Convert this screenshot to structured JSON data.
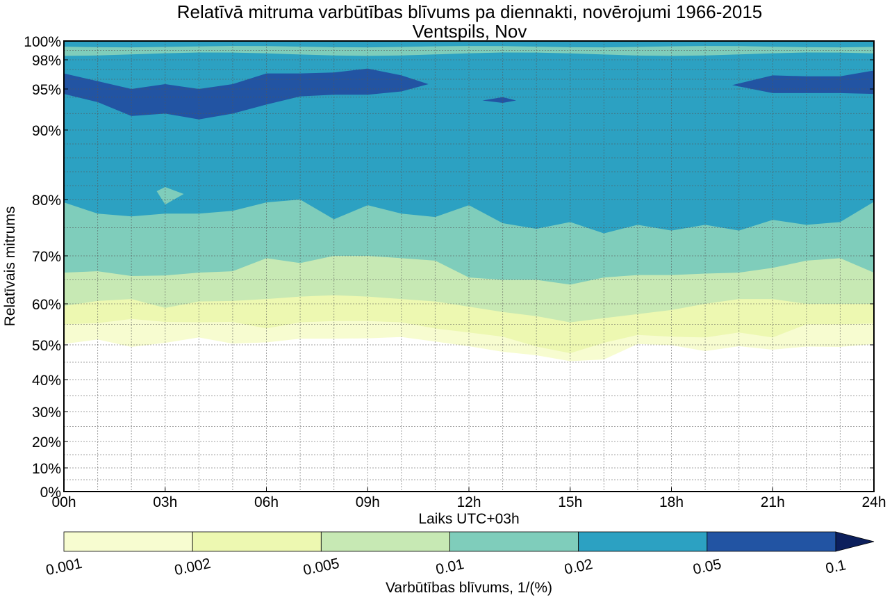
{
  "chart_data": {
    "type": "contourf",
    "title": "Relatīvā mitruma varbūtības blīvums pa diennakti, novērojumi 1966-2015",
    "subtitle": "Ventspils, Nov",
    "xlabel": "Laiks UTC+03h",
    "ylabel": "Relatīvais mitrums",
    "xlim": [
      0,
      24
    ],
    "x_ticks": [
      0,
      3,
      6,
      9,
      12,
      15,
      18,
      21,
      24
    ],
    "x_tick_labels": [
      "00h",
      "03h",
      "06h",
      "09h",
      "12h",
      "15h",
      "18h",
      "21h",
      "24h"
    ],
    "y_ticks": [
      0,
      10,
      20,
      30,
      40,
      50,
      60,
      70,
      80,
      90,
      95,
      98,
      100
    ],
    "y_tick_labels": [
      "0%",
      "10%",
      "20%",
      "30%",
      "40%",
      "50%",
      "60%",
      "70%",
      "80%",
      "90%",
      "95%",
      "98%",
      "100%"
    ],
    "y_minor_grid": [
      5,
      15,
      25,
      35,
      45,
      55,
      65,
      75,
      82,
      84,
      86,
      88,
      92,
      94,
      96,
      97,
      99
    ],
    "grid": true,
    "colorbar": {
      "label": "Varbūtības blīvums, 1/(%)",
      "levels": [
        0.001,
        0.002,
        0.005,
        0.01,
        0.02,
        0.05,
        0.1
      ],
      "level_labels": [
        "0.001",
        "0.002",
        "0.005",
        "0.01",
        "0.02",
        "0.05",
        "0.1"
      ],
      "colors": [
        "#f7fcd0",
        "#edf8b1",
        "#c7e9b4",
        "#7fcdbb",
        "#2ca1c2",
        "#2254a3",
        "#0c1f5c"
      ],
      "extend": "max",
      "placement": "bottom"
    },
    "hours": [
      0,
      1,
      2,
      3,
      4,
      5,
      6,
      7,
      8,
      9,
      10,
      11,
      12,
      13,
      14,
      15,
      16,
      17,
      18,
      19,
      20,
      21,
      22,
      23,
      24
    ],
    "bands": [
      {
        "level": 0.001,
        "color": "#f7fcd0",
        "lower_rh": [
          50.2,
          51.3,
          49.4,
          50.5,
          51.8,
          50.3,
          50.6,
          51.5,
          51.5,
          51.6,
          51.9,
          50.8,
          49.6,
          48.0,
          47.0,
          45.3,
          45.8,
          50.2,
          49.9,
          48.2,
          49.6,
          48.6,
          49.5,
          49.4,
          50.2
        ]
      },
      {
        "level": 0.002,
        "color": "#edf8b1",
        "lower_rh": [
          55.0,
          55.3,
          56.3,
          55.6,
          55.5,
          55.6,
          54.0,
          55.5,
          55.8,
          55.8,
          55.5,
          54.0,
          53.0,
          52.0,
          49.5,
          47.6,
          50.5,
          52.4,
          52.0,
          51.8,
          53.0,
          51.8,
          55.0,
          55.0,
          55.2
        ]
      },
      {
        "level": 0.005,
        "color": "#c7e9b4",
        "lower_rh": [
          59.5,
          60.6,
          61.0,
          59.0,
          60.5,
          60.6,
          61.0,
          61.5,
          61.8,
          61.5,
          61.0,
          60.5,
          59.3,
          58.0,
          57.0,
          55.5,
          56.5,
          57.5,
          58.5,
          60.0,
          61.0,
          61.0,
          60.0,
          60.0,
          60.0
        ]
      },
      {
        "level": 0.01,
        "color": "#7fcdbb",
        "lower_rh": [
          66.5,
          66.8,
          65.8,
          65.9,
          66.5,
          66.8,
          69.5,
          68.5,
          70.0,
          70.0,
          69.5,
          69.0,
          65.5,
          65.0,
          65.0,
          64.0,
          65.5,
          66.0,
          66.0,
          66.3,
          66.5,
          67.5,
          69.0,
          69.5,
          66.5
        ]
      },
      {
        "level": 0.02,
        "color": "#2ca1c2",
        "lower_rh": [
          79.5,
          77.5,
          77.0,
          77.5,
          77.5,
          78.0,
          79.5,
          80.0,
          76.5,
          79.0,
          77.5,
          76.9,
          79.0,
          75.8,
          74.8,
          76.0,
          74.0,
          75.5,
          74.5,
          75.5,
          74.5,
          76.4,
          75.5,
          76.0,
          79.6
        ]
      }
    ],
    "high_band_segments": [
      {
        "level": 0.05,
        "color": "#2254a3",
        "hours": [
          0,
          1,
          2,
          3,
          4,
          5,
          6,
          7,
          8,
          9,
          10,
          10.8
        ],
        "upper_rh": [
          96.6,
          95.8,
          95.0,
          95.5,
          95.0,
          95.5,
          96.6,
          96.6,
          96.7,
          97.1,
          96.4,
          95.5
        ],
        "lower_rh": [
          94.4,
          93.4,
          91.7,
          92.0,
          91.3,
          92.0,
          93.1,
          94.1,
          94.3,
          94.3,
          94.7,
          95.5
        ]
      },
      {
        "level": 0.05,
        "color": "#2254a3",
        "hours": [
          19.8,
          21,
          22,
          23,
          24
        ],
        "upper_rh": [
          95.4,
          96.4,
          96.3,
          96.3,
          96.9
        ],
        "lower_rh": [
          95.4,
          94.5,
          94.5,
          94.5,
          94.4
        ]
      }
    ],
    "top_band": {
      "level": 0.01,
      "color": "#7fcdbb",
      "upper_rh_approx": 99.4,
      "lower_rh_approx": 98.6
    }
  }
}
